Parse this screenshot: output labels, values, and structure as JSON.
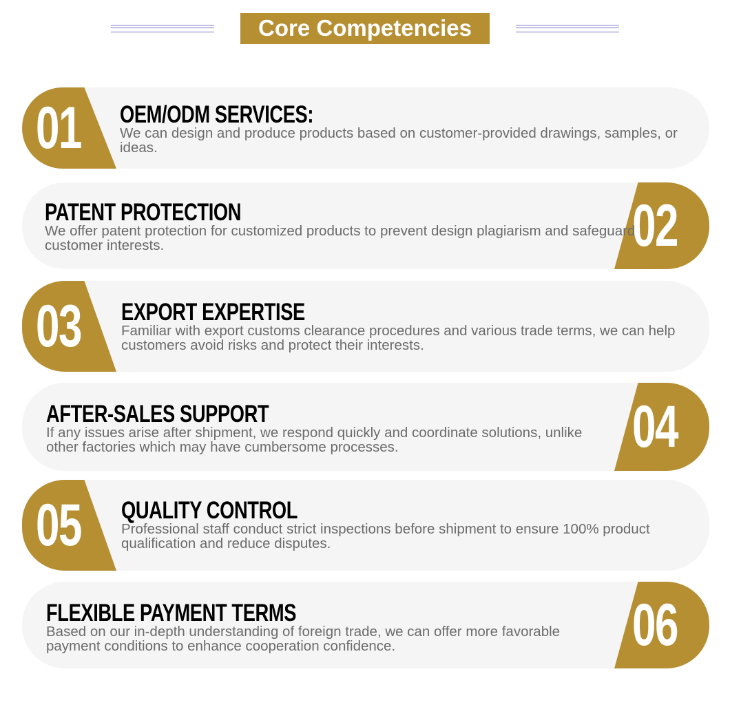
{
  "header": {
    "title": "Core Competencies"
  },
  "colors": {
    "accent": "#b68f33",
    "card": "#f5f5f5",
    "rule": "#7b74cc"
  },
  "items": [
    {
      "number": "01",
      "title": "OEM/ODM SERVICES:",
      "text": "We can design and produce products based on customer-provided drawings, samples, or ideas."
    },
    {
      "number": "02",
      "title": "PATENT PROTECTION",
      "text": "We offer patent protection for customized products to prevent design plagiarism and safeguard customer interests."
    },
    {
      "number": "03",
      "title": "EXPORT EXPERTISE",
      "text": "Familiar with export customs clearance procedures and various trade terms, we can help customers avoid risks and protect their interests."
    },
    {
      "number": "04",
      "title": "AFTER-SALES SUPPORT",
      "text": "If any issues arise after shipment, we respond quickly and coordinate solutions, unlike other factories which may have cumbersome processes."
    },
    {
      "number": "05",
      "title": "QUALITY CONTROL",
      "text": "Professional staff conduct strict inspections before shipment to ensure 100% product qualification and reduce disputes."
    },
    {
      "number": "06",
      "title": "FLEXIBLE PAYMENT TERMS",
      "text": "Based on our in-depth understanding of foreign trade, we can offer more favorable payment conditions to enhance cooperation confidence."
    }
  ]
}
